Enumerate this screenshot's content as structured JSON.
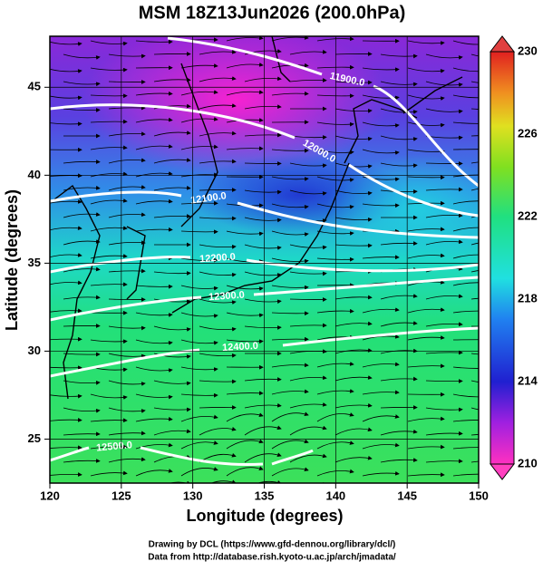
{
  "title": "MSM 18Z13Jun2026 (200.0hPa)",
  "x_axis": {
    "label": "Longitude (degrees)",
    "lim": [
      120,
      150
    ],
    "ticks": [
      120,
      125,
      130,
      135,
      140,
      145,
      150
    ]
  },
  "y_axis": {
    "label": "Latitude  (degrees)",
    "lim": [
      22.5,
      47.9
    ],
    "ticks": [
      25,
      30,
      35,
      40,
      45
    ]
  },
  "colorbar": {
    "lim": [
      210,
      230
    ],
    "ticks": [
      210,
      214,
      218,
      222,
      226,
      230
    ]
  },
  "contours": [
    {
      "value": 11900,
      "label": "11900.0"
    },
    {
      "value": 12000,
      "label": "12000.0"
    },
    {
      "value": 12100,
      "label": "12100.0"
    },
    {
      "value": 12200,
      "label": "12200.0"
    },
    {
      "value": 12300,
      "label": "12300.0"
    },
    {
      "value": 12400,
      "label": "12400.0"
    },
    {
      "value": 12500,
      "label": "12500.0"
    }
  ],
  "footer": [
    "Drawing by DCL (https://www.gfd-dennou.org/library/dcl/)",
    "Data from http://database.rish.kyoto-u.ac.jp/arch/jmadata/"
  ]
}
